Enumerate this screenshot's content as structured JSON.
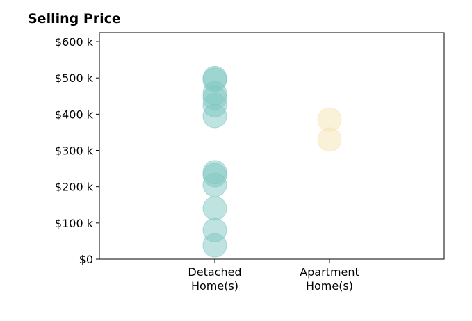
{
  "chart_data": {
    "type": "scatter",
    "title": "Selling Price",
    "xlabel": "",
    "ylabel": "",
    "categories": [
      "Detached\nHome(s)",
      "Apartment\nHome(s)"
    ],
    "ylim": [
      0,
      625000
    ],
    "yticks": [
      {
        "value": 0,
        "label": "$0"
      },
      {
        "value": 100000,
        "label": "$100 k"
      },
      {
        "value": 200000,
        "label": "$200 k"
      },
      {
        "value": 300000,
        "label": "$300 k"
      },
      {
        "value": 400000,
        "label": "$400 k"
      },
      {
        "value": 500000,
        "label": "$500 k"
      },
      {
        "value": 600000,
        "label": "$600 k"
      }
    ],
    "grid": false,
    "legend": "none",
    "series": [
      {
        "category": "Detached\nHome(s)",
        "color": "#80c7c1",
        "values": [
          38000,
          80000,
          140000,
          205000,
          232000,
          240000,
          395000,
          425000,
          445000,
          458000,
          495000,
          500000
        ]
      },
      {
        "category": "Apartment\nHome(s)",
        "color": "#f6e3b4",
        "values": [
          330000,
          385000
        ]
      }
    ]
  }
}
